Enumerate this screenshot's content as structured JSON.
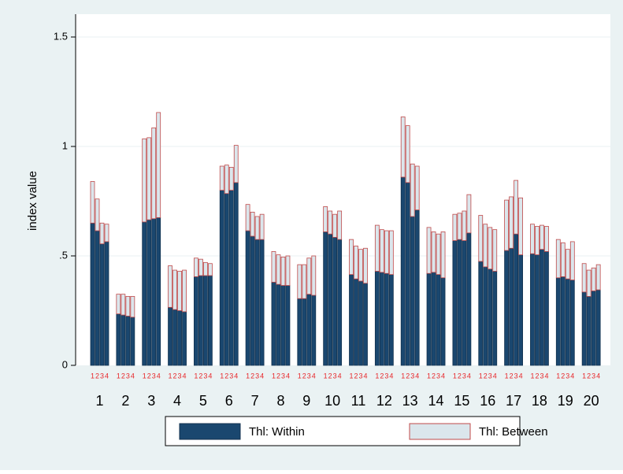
{
  "chart_data": {
    "type": "stacked_bar",
    "y_label": "index value",
    "categories": [
      "1",
      "2",
      "3",
      "4",
      "5",
      "6",
      "7",
      "8",
      "9",
      "10",
      "11",
      "12",
      "13",
      "14",
      "15",
      "16",
      "17",
      "18",
      "19",
      "20"
    ],
    "sub_categories": [
      "1",
      "2",
      "3",
      "4"
    ],
    "series": [
      {
        "name": "Thl: Within",
        "color": "#1a476f",
        "values": [
          [
            0.65,
            0.615,
            0.555,
            0.565
          ],
          [
            0.235,
            0.23,
            0.225,
            0.22
          ],
          [
            0.655,
            0.665,
            0.67,
            0.675
          ],
          [
            0.265,
            0.255,
            0.25,
            0.245
          ],
          [
            0.405,
            0.41,
            0.41,
            0.41
          ],
          [
            0.8,
            0.785,
            0.8,
            0.835
          ],
          [
            0.615,
            0.59,
            0.575,
            0.575
          ],
          [
            0.38,
            0.37,
            0.365,
            0.365
          ],
          [
            0.305,
            0.305,
            0.325,
            0.32
          ],
          [
            0.61,
            0.6,
            0.585,
            0.575
          ],
          [
            0.415,
            0.395,
            0.385,
            0.375
          ],
          [
            0.43,
            0.425,
            0.42,
            0.415
          ],
          [
            0.86,
            0.835,
            0.68,
            0.71
          ],
          [
            0.42,
            0.425,
            0.415,
            0.4
          ],
          [
            0.57,
            0.575,
            0.57,
            0.605
          ],
          [
            0.475,
            0.45,
            0.44,
            0.43
          ],
          [
            0.525,
            0.535,
            0.6,
            0.505
          ],
          [
            0.51,
            0.505,
            0.53,
            0.52
          ],
          [
            0.4,
            0.405,
            0.395,
            0.39
          ],
          [
            0.335,
            0.315,
            0.34,
            0.345
          ]
        ]
      },
      {
        "name": "Thl: Between",
        "color": "#dbe6ec",
        "values": [
          [
            0.19,
            0.145,
            0.095,
            0.08
          ],
          [
            0.09,
            0.095,
            0.09,
            0.095
          ],
          [
            0.38,
            0.375,
            0.415,
            0.48
          ],
          [
            0.19,
            0.18,
            0.18,
            0.19
          ],
          [
            0.085,
            0.075,
            0.06,
            0.055
          ],
          [
            0.11,
            0.13,
            0.105,
            0.17
          ],
          [
            0.12,
            0.11,
            0.105,
            0.115
          ],
          [
            0.14,
            0.135,
            0.13,
            0.135
          ],
          [
            0.155,
            0.155,
            0.165,
            0.18
          ],
          [
            0.115,
            0.105,
            0.105,
            0.13
          ],
          [
            0.16,
            0.15,
            0.145,
            0.16
          ],
          [
            0.21,
            0.195,
            0.195,
            0.2
          ],
          [
            0.275,
            0.26,
            0.24,
            0.2
          ],
          [
            0.21,
            0.185,
            0.185,
            0.21
          ],
          [
            0.12,
            0.12,
            0.135,
            0.175
          ],
          [
            0.21,
            0.195,
            0.19,
            0.19
          ],
          [
            0.23,
            0.235,
            0.245,
            0.26
          ],
          [
            0.135,
            0.13,
            0.11,
            0.115
          ],
          [
            0.175,
            0.155,
            0.135,
            0.175
          ],
          [
            0.13,
            0.12,
            0.105,
            0.115
          ]
        ]
      }
    ],
    "ylim": [
      0,
      1.6
    ],
    "yticks": [
      0,
      {
        "value": 0.5,
        "label": ".5"
      },
      1,
      1.5
    ],
    "grid": true,
    "legend": "bottom"
  }
}
